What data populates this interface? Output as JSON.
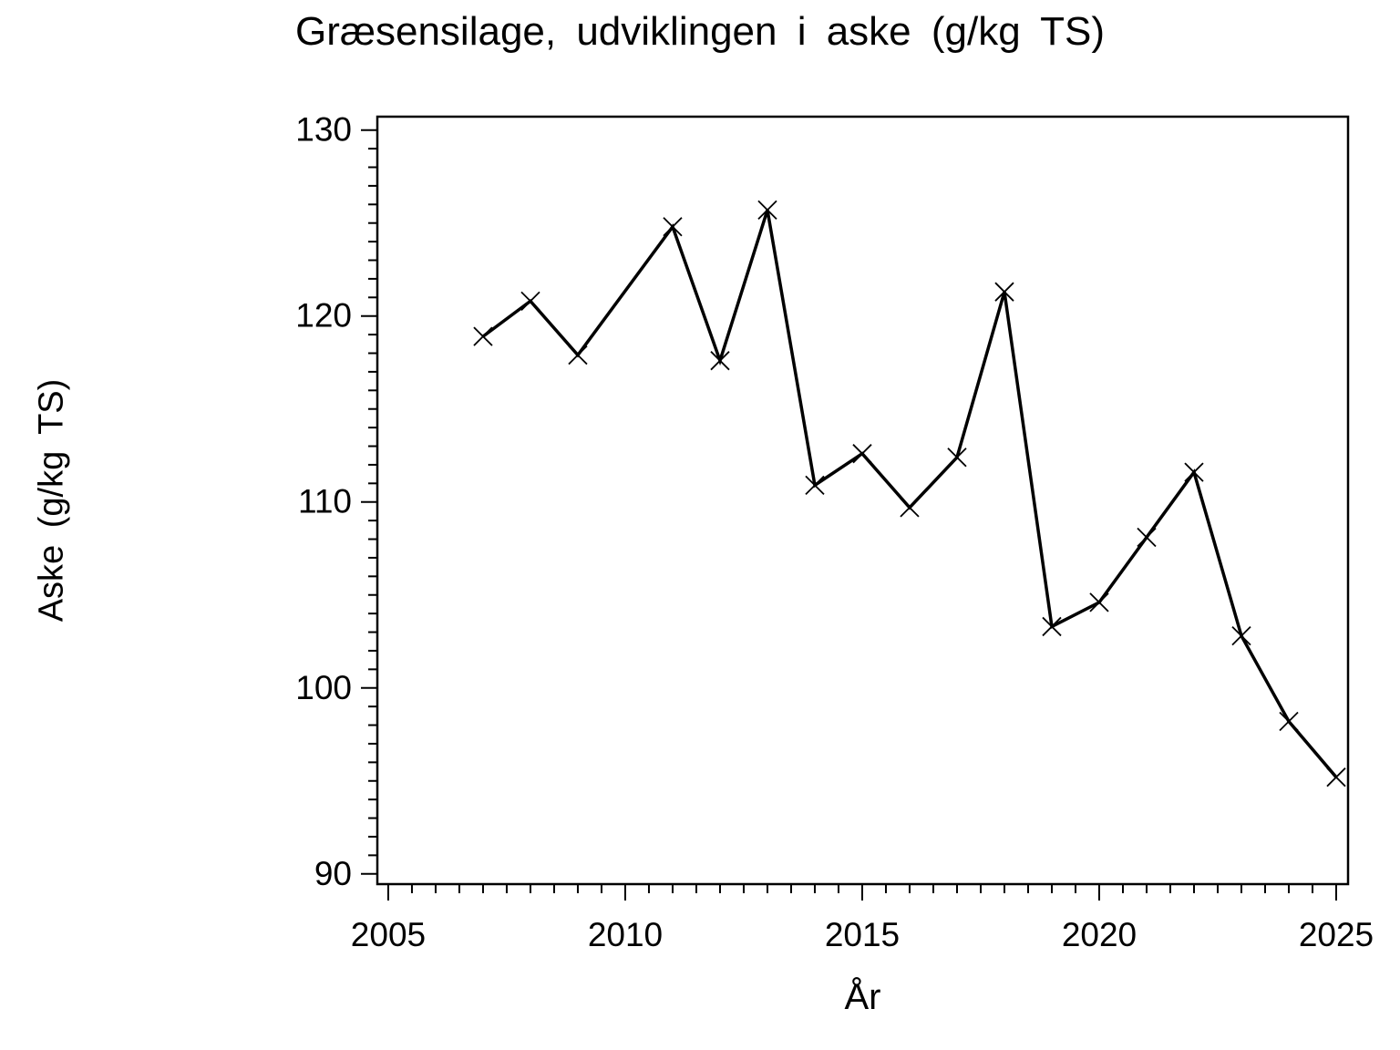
{
  "chart_data": {
    "type": "line",
    "title": "Græsensilage, udviklingen i aske (g/kg TS)",
    "xlabel": "År",
    "ylabel": "Aske (g/kg TS)",
    "series": [
      {
        "name": "Aske",
        "x": [
          2007,
          2008,
          2009,
          2011,
          2012,
          2013,
          2014,
          2015,
          2016,
          2017,
          2018,
          2019,
          2020,
          2021,
          2022,
          2023,
          2024,
          2025
        ],
        "y": [
          118.9,
          120.8,
          117.9,
          124.8,
          117.6,
          125.7,
          110.9,
          112.6,
          109.7,
          112.4,
          121.3,
          103.3,
          104.6,
          108.1,
          111.6,
          102.8,
          98.2,
          95.2
        ]
      }
    ],
    "marker": "x",
    "line_color": "#000000",
    "background_color": "#ffffff",
    "xlim": [
      2004.77,
      2025.25
    ],
    "ylim": [
      89.45,
      130.72
    ],
    "x_major_ticks": [
      2005,
      2010,
      2015,
      2020,
      2025
    ],
    "x_minor_tick_step": 0.5,
    "y_major_ticks": [
      90,
      100,
      110,
      120,
      130
    ],
    "y_minor_tick_step": 1,
    "grid": "off",
    "legend": "none"
  }
}
